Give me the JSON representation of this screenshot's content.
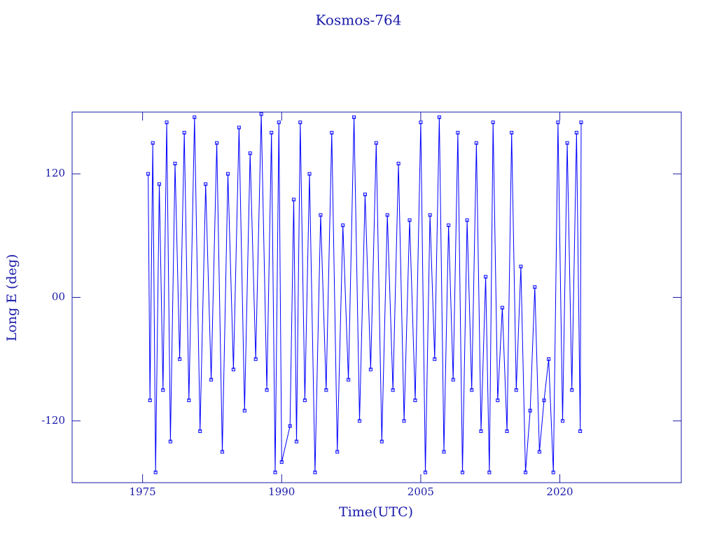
{
  "chart_data": {
    "type": "line",
    "title": "Kosmos-764",
    "x_label": "Time(UTC)",
    "y_label": "Long E (deg)",
    "color": "#0000ff",
    "marker": "square",
    "xlim": [
      1967.4,
      2033.1
    ],
    "xticks": [
      1975,
      1990,
      2005,
      2020
    ],
    "ylim": [
      -180,
      180
    ],
    "yticks": [
      -120,
      {
        "value": 0,
        "label": "00"
      },
      120
    ],
    "x": [
      1975.6,
      1975.8,
      1976.1,
      1976.4,
      1976.8,
      1977.2,
      1977.6,
      1978.0,
      1978.5,
      1979.0,
      1979.5,
      1980.0,
      1980.6,
      1981.2,
      1981.8,
      1982.4,
      1983.0,
      1983.6,
      1984.2,
      1984.8,
      1985.4,
      1986.0,
      1986.6,
      1987.2,
      1987.8,
      1988.4,
      1988.9,
      1989.3,
      1989.7,
      1990.0,
      1990.9,
      1991.3,
      1991.6,
      1992.0,
      1992.5,
      1993.0,
      1993.6,
      1994.2,
      1994.8,
      1995.4,
      1996.0,
      1996.6,
      1997.2,
      1997.8,
      1998.4,
      1999.0,
      1999.6,
      2000.2,
      2000.8,
      2001.4,
      2002.0,
      2002.6,
      2003.2,
      2003.8,
      2004.4,
      2005.0,
      2005.5,
      2006.0,
      2006.5,
      2007.0,
      2007.5,
      2008.0,
      2008.5,
      2009.0,
      2009.5,
      2010.0,
      2010.5,
      2011.0,
      2011.5,
      2012.0,
      2012.4,
      2012.8,
      2013.3,
      2013.8,
      2014.3,
      2014.8,
      2015.3,
      2015.8,
      2016.3,
      2016.8,
      2017.3,
      2017.8,
      2018.3,
      2018.8,
      2019.3,
      2019.8,
      2020.3,
      2020.8,
      2021.3,
      2021.8,
      2022.2,
      2022.3
    ],
    "values": [
      120,
      -100,
      150,
      -170,
      110,
      -90,
      170,
      -140,
      130,
      -60,
      160,
      -100,
      175,
      -130,
      110,
      -80,
      150,
      -150,
      120,
      -70,
      165,
      -110,
      140,
      -60,
      178,
      -90,
      160,
      -170,
      170,
      -160,
      -125,
      95,
      -140,
      170,
      -100,
      120,
      -170,
      80,
      -90,
      160,
      -150,
      70,
      -80,
      175,
      -120,
      100,
      -70,
      150,
      -140,
      80,
      -90,
      130,
      -120,
      75,
      -100,
      170,
      -170,
      80,
      -60,
      175,
      -150,
      70,
      -80,
      160,
      -170,
      75,
      -90,
      150,
      -130,
      20,
      -170,
      170,
      -100,
      -10,
      -130,
      160,
      -90,
      30,
      -170,
      -110,
      10,
      -150,
      -100,
      -60,
      -170,
      170,
      -120,
      150,
      -90,
      160,
      -130,
      170
    ]
  }
}
